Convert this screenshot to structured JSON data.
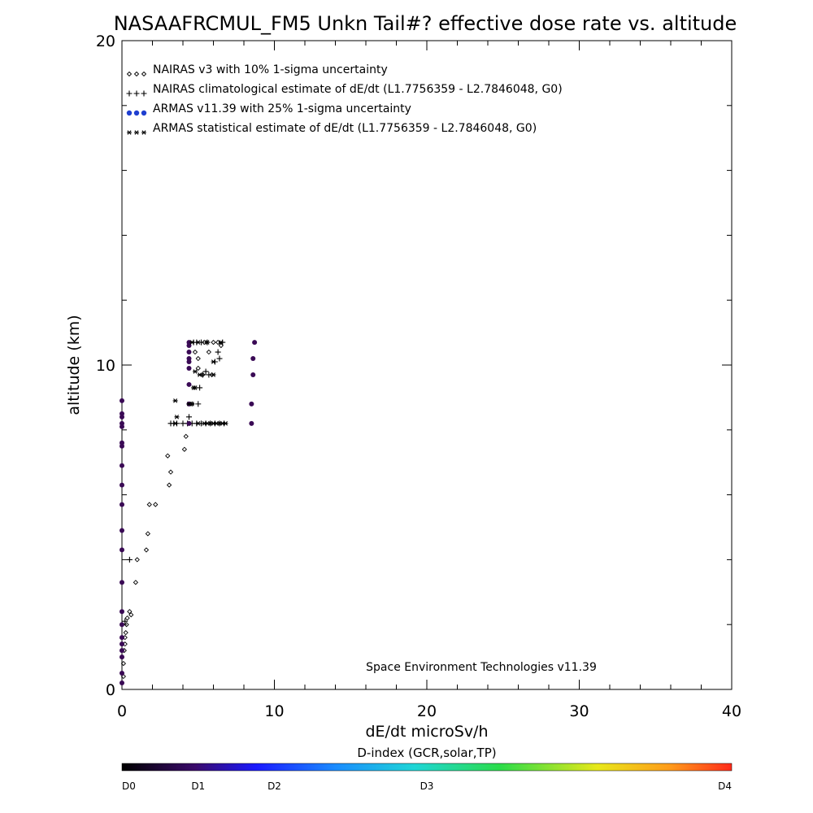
{
  "chart_data": {
    "type": "scatter",
    "title": "NASAAFRCMUL_FM5 Unkn Tail#? effective dose rate vs. altitude",
    "xlabel": "dE/dt microSv/h",
    "ylabel": "altitude (km)",
    "xlim": [
      0,
      40
    ],
    "ylim": [
      0,
      20
    ],
    "x_ticks": [
      "0",
      "10",
      "20",
      "30",
      "40"
    ],
    "y_ticks": [
      "0",
      "10",
      "20"
    ],
    "credit": "Space Environment Technologies v11.39",
    "legend_position": "top-left",
    "legend": [
      {
        "marker": "diamond",
        "symbols": "◇◇◇",
        "color": "#000000",
        "label": "NAIRAS v3 with 10% 1-sigma uncertainty"
      },
      {
        "marker": "plus",
        "symbols": "+++",
        "color": "#000000",
        "label": "NAIRAS climatological estimate of dE/dt (L1.7756359 - L2.7846048, G0)"
      },
      {
        "marker": "dot",
        "symbols": "●●●",
        "color": "#1f3fd0",
        "label": "ARMAS v11.39 with 25% 1-sigma uncertainty"
      },
      {
        "marker": "asterisk",
        "symbols": "***",
        "color": "#000000",
        "label": "ARMAS statistical estimate of dE/dt (L1.7756359 - L2.7846048, G0)"
      }
    ],
    "series": [
      {
        "name": "NAIRAS v3 with 10% 1-sigma uncertainty",
        "marker": "diamond",
        "color": "#000000",
        "x": [
          0.1,
          0.1,
          0.15,
          0.2,
          0.2,
          0.25,
          0.3,
          0.35,
          0.5,
          0.6,
          0.9,
          1.0,
          1.6,
          1.7,
          1.8,
          2.2,
          3.0,
          3.1,
          3.2,
          4.1,
          4.2,
          4.4,
          4.6,
          4.8,
          5.0,
          5.0,
          5.3,
          5.4,
          5.7,
          5.9,
          6.0,
          6.3,
          6.5
        ],
        "y": [
          0.4,
          0.8,
          1.2,
          1.4,
          1.6,
          1.75,
          2.0,
          2.2,
          2.4,
          2.3,
          3.3,
          4.0,
          4.3,
          4.8,
          5.7,
          5.7,
          7.2,
          6.3,
          6.7,
          7.4,
          7.8,
          8.8,
          8.8,
          10.4,
          9.9,
          10.2,
          9.7,
          10.7,
          10.4,
          9.7,
          10.7,
          10.7,
          10.6
        ]
      },
      {
        "name": "NAIRAS climatological estimate of dE/dt (L1.7756359 - L2.7846048, G0)",
        "marker": "plus",
        "color": "#000000",
        "x": [
          0.2,
          0.5,
          3.2,
          3.4,
          3.6,
          4.0,
          4.3,
          4.6,
          4.9,
          5.2,
          5.5,
          5.8,
          6.1,
          6.4,
          6.7,
          4.4,
          5.0,
          5.1,
          5.3,
          5.5,
          5.7,
          6.1,
          6.4,
          6.3,
          6.6,
          4.7,
          4.9,
          5.2,
          5.6
        ],
        "y": [
          2.1,
          4.0,
          8.2,
          8.2,
          8.2,
          8.2,
          8.2,
          8.2,
          8.2,
          8.2,
          8.2,
          8.2,
          8.2,
          8.2,
          8.2,
          8.4,
          8.8,
          9.3,
          9.7,
          9.8,
          9.7,
          10.1,
          10.2,
          10.4,
          10.7,
          10.7,
          10.7,
          10.7,
          10.7
        ]
      },
      {
        "name": "ARMAS v11.39 with 25% 1-sigma uncertainty",
        "marker": "dot",
        "color": "#3a0a55",
        "x": [
          0,
          0,
          0,
          0,
          0,
          0,
          0,
          0,
          0,
          0,
          0,
          0,
          0,
          0,
          0,
          0,
          0,
          0,
          0,
          0,
          0,
          4.4,
          4.4,
          4.4,
          4.4,
          4.4,
          4.4,
          4.4,
          4.4,
          4.4,
          8.5,
          8.5,
          8.6,
          8.6,
          8.7
        ],
        "y": [
          0.5,
          1.0,
          1.2,
          1.4,
          1.6,
          2.0,
          2.4,
          3.3,
          4.3,
          4.9,
          5.7,
          6.3,
          6.9,
          7.5,
          7.6,
          8.1,
          8.2,
          8.4,
          8.5,
          8.9,
          0.2,
          8.2,
          8.8,
          9.4,
          9.9,
          10.1,
          10.2,
          10.4,
          10.6,
          10.7,
          8.2,
          8.8,
          9.7,
          10.2,
          10.7
        ]
      },
      {
        "name": "ARMAS statistical estimate of dE/dt (L1.7756359 - L2.7846048, G0)",
        "marker": "asterisk",
        "color": "#000000",
        "x": [
          3.5,
          3.6,
          3.5,
          4.4,
          4.6,
          4.7,
          4.8,
          5.0,
          5.4,
          5.6,
          5.8,
          6.0,
          6.2,
          6.4,
          6.6,
          6.8,
          4.8,
          5.1,
          6.0,
          4.6,
          5.0,
          5.6,
          6.0,
          6.5
        ],
        "y": [
          8.2,
          8.4,
          8.9,
          8.8,
          8.8,
          9.3,
          9.8,
          8.2,
          8.2,
          8.2,
          8.2,
          8.2,
          8.2,
          8.2,
          8.2,
          8.2,
          9.3,
          9.7,
          9.7,
          10.7,
          10.7,
          10.7,
          10.1,
          10.7
        ]
      }
    ],
    "colorbar": {
      "title": "D-index (GCR,solar,TP)",
      "labels": [
        {
          "text": "D0",
          "pos": 0.0
        },
        {
          "text": "D1",
          "pos": 0.125
        },
        {
          "text": "D2",
          "pos": 0.25
        },
        {
          "text": "D3",
          "pos": 0.5
        },
        {
          "text": "D4",
          "pos": 1.0
        }
      ],
      "stops": [
        {
          "pos": 0.0,
          "color": "#000000"
        },
        {
          "pos": 0.12,
          "color": "#3a0a6a"
        },
        {
          "pos": 0.22,
          "color": "#1a1aff"
        },
        {
          "pos": 0.35,
          "color": "#1a8cff"
        },
        {
          "pos": 0.48,
          "color": "#1fd6d6"
        },
        {
          "pos": 0.62,
          "color": "#2bdc4a"
        },
        {
          "pos": 0.78,
          "color": "#e8e81a"
        },
        {
          "pos": 0.9,
          "color": "#ff9a1a"
        },
        {
          "pos": 1.0,
          "color": "#ff2a1a"
        }
      ]
    }
  }
}
